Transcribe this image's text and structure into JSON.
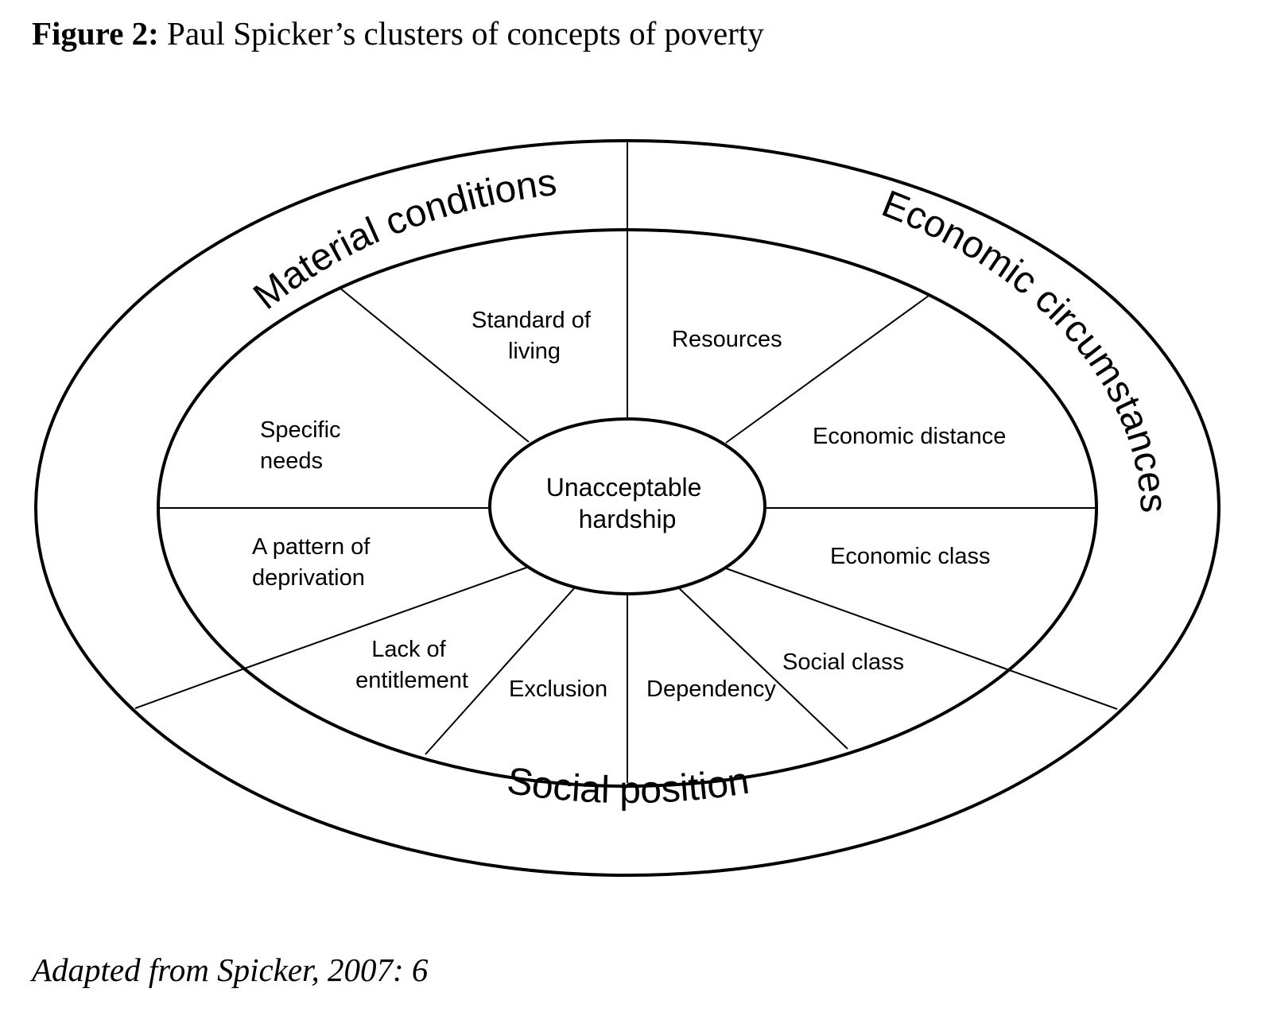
{
  "figure": {
    "label": "Figure 2:",
    "title": "Paul Spicker’s clusters of concepts of poverty",
    "source": "Adapted from Spicker, 2007: 6"
  },
  "diagram": {
    "center": [
      "Unacceptable",
      "hardship"
    ],
    "clusters": {
      "material": "Material conditions",
      "economic": "Economic circumstances",
      "social": "Social position"
    },
    "segments": {
      "standard_of_living": [
        "Standard of",
        "living"
      ],
      "resources": "Resources",
      "specific_needs": [
        "Specific",
        "needs"
      ],
      "economic_distance": "Economic distance",
      "pattern_of_deprivation": [
        "A pattern of",
        "deprivation"
      ],
      "economic_class": "Economic class",
      "lack_of_entitlement": [
        "Lack of",
        "entitlement"
      ],
      "exclusion": "Exclusion",
      "dependency": "Dependency",
      "social_class": "Social class"
    }
  }
}
